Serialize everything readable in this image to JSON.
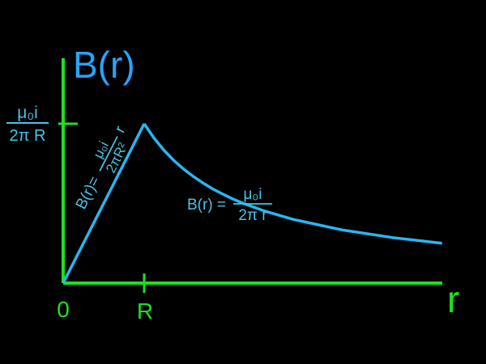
{
  "chart_data": {
    "type": "line",
    "ylabel": "B(r)",
    "xlabel": "r",
    "x_ticks": [
      {
        "label": "0",
        "value": 0
      },
      {
        "label": "R",
        "value": 1
      }
    ],
    "y_tick": {
      "value": 1,
      "numerator": "μ₀i",
      "denominator": "2π R"
    },
    "xlim": [
      0,
      4
    ],
    "ylim": [
      0,
      1.3
    ],
    "grid": false,
    "series": [
      {
        "x": [
          0,
          0.1,
          0.2,
          0.3,
          0.4,
          0.5,
          0.6,
          0.7,
          0.8,
          0.9,
          1.0
        ],
        "y": [
          0,
          0.1,
          0.2,
          0.3,
          0.4,
          0.5,
          0.6,
          0.7,
          0.8,
          0.9,
          1.0
        ]
      },
      {
        "x": [
          1.0,
          1.1,
          1.2,
          1.3,
          1.4,
          1.5,
          1.6,
          1.7,
          1.8,
          1.9,
          2.0,
          2.2,
          2.5,
          3.0,
          3.5,
          4.0
        ],
        "y": [
          1.0,
          0.909,
          0.833,
          0.769,
          0.714,
          0.667,
          0.625,
          0.588,
          0.556,
          0.526,
          0.5,
          0.455,
          0.4,
          0.333,
          0.286,
          0.25
        ]
      }
    ],
    "annotations": {
      "inside": {
        "prefix": "B(r)=",
        "numerator": "μ₀i",
        "denominator": "2πR²",
        "suffix": "r"
      },
      "outside": {
        "prefix": "B(r) =",
        "numerator": "μ₀i",
        "denominator": "2π r"
      }
    },
    "colors": {
      "axis": "#1fe01f",
      "curve": "#29b6f0",
      "ylabel": "#29a3ff",
      "annotation": "#4cc2e6"
    }
  }
}
